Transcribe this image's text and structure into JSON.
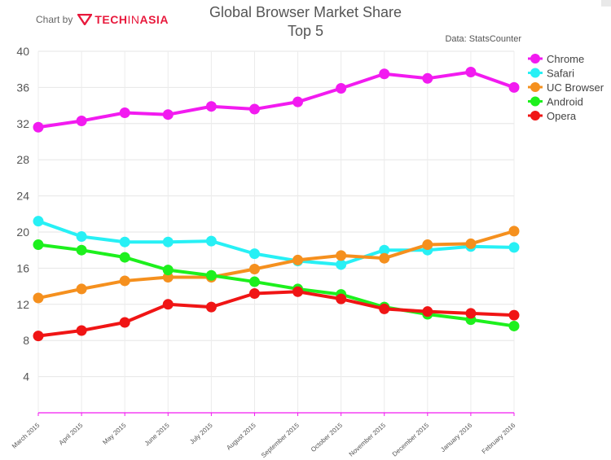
{
  "credit": {
    "prefix": "Chart by",
    "brand_main": "TECH",
    "brand_mid": "IN",
    "brand_end": "ASIA"
  },
  "chart_data": {
    "type": "line",
    "title": "Global Browser Market Share",
    "subtitle": "Top 5",
    "source": "Data: StatsCounter",
    "xlabel": "",
    "ylabel": "",
    "ylim": [
      0,
      40
    ],
    "yticks": [
      4,
      8,
      12,
      16,
      20,
      24,
      28,
      32,
      36,
      40
    ],
    "grid": true,
    "legend_position": "top-right",
    "categories": [
      "March 2015",
      "April 2015",
      "May 2015",
      "June 2015",
      "July 2015",
      "August 2015",
      "September 2015",
      "October 2015",
      "November 2015",
      "December 2015",
      "January 2016",
      "February 2016"
    ],
    "series": [
      {
        "name": "Chrome",
        "color": "#f21bf0",
        "values": [
          31.6,
          32.3,
          33.2,
          33.0,
          33.9,
          33.6,
          34.4,
          35.9,
          37.5,
          37.0,
          37.7,
          36.0
        ]
      },
      {
        "name": "Safari",
        "color": "#27f0f5",
        "values": [
          21.2,
          19.5,
          18.9,
          18.9,
          19.0,
          17.6,
          16.8,
          16.4,
          18.0,
          18.0,
          18.4,
          18.3
        ]
      },
      {
        "name": "UC Browser",
        "color": "#f5901e",
        "values": [
          12.7,
          13.7,
          14.6,
          15.0,
          15.0,
          15.9,
          16.9,
          17.4,
          17.1,
          18.6,
          18.7,
          20.1
        ]
      },
      {
        "name": "Android",
        "color": "#1df01d",
        "values": [
          18.6,
          18.0,
          17.2,
          15.8,
          15.2,
          14.5,
          13.7,
          13.1,
          11.7,
          10.9,
          10.3,
          9.6
        ]
      },
      {
        "name": "Opera",
        "color": "#f01515",
        "values": [
          8.5,
          9.1,
          10.0,
          12.0,
          11.7,
          13.2,
          13.4,
          12.6,
          11.5,
          11.2,
          11.0,
          10.8
        ]
      }
    ]
  }
}
